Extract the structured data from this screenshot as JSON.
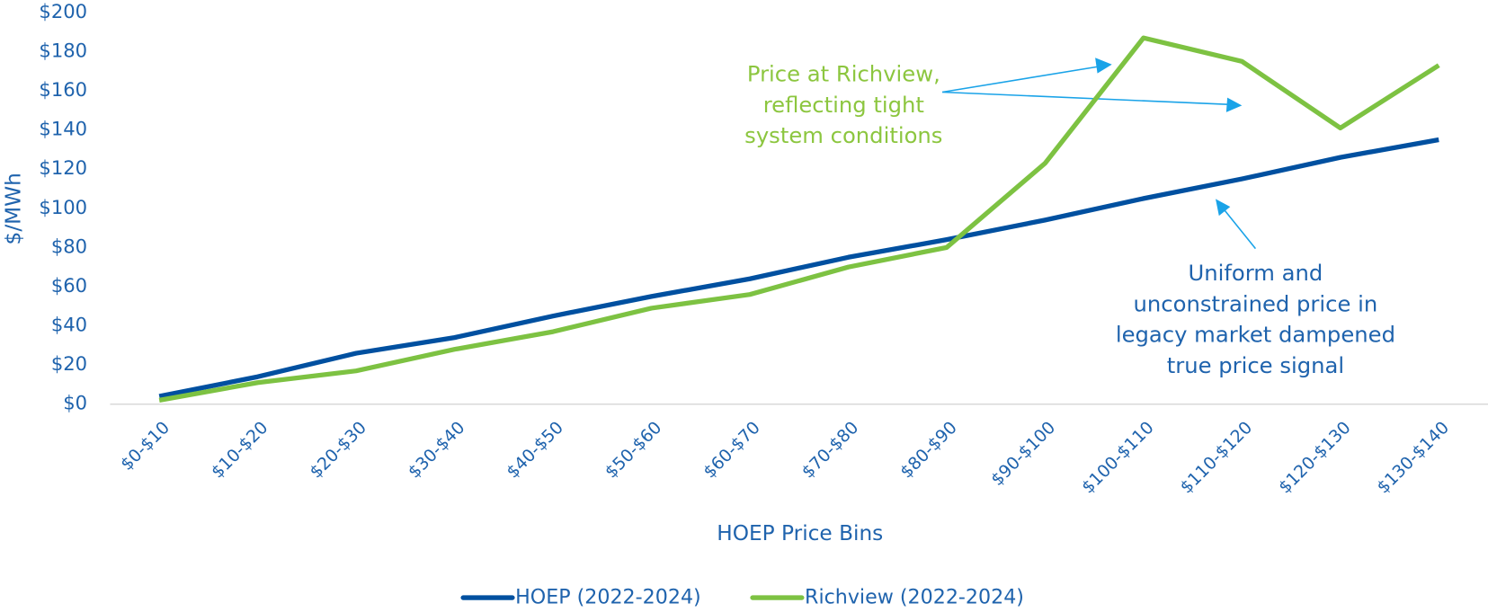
{
  "chart_data": {
    "type": "line",
    "x_label": "HOEP Price Bins",
    "y_label": "$/MWh",
    "categories": [
      "$0-$10",
      "$10-$20",
      "$20-$30",
      "$30-$40",
      "$40-$50",
      "$50-$60",
      "$60-$70",
      "$70-$80",
      "$80-$90",
      "$90-$100",
      "$100-$110",
      "$110-$120",
      "$120-$130",
      "$130-$140"
    ],
    "series": [
      {
        "name": "HOEP (2022-2024)",
        "color": "#0050a0",
        "values": [
          4,
          14,
          26,
          34,
          45,
          55,
          64,
          75,
          84,
          94,
          105,
          115,
          126,
          135
        ]
      },
      {
        "name": "Richview (2022-2024)",
        "color": "#7dc242",
        "values": [
          2,
          11,
          17,
          28,
          37,
          49,
          56,
          70,
          80,
          123,
          187,
          175,
          141,
          173
        ]
      }
    ],
    "ylim": [
      0,
      200
    ],
    "yticks": [
      {
        "value": 0,
        "label": "$0"
      },
      {
        "value": 20,
        "label": "$20"
      },
      {
        "value": 40,
        "label": "$40"
      },
      {
        "value": 60,
        "label": "$60"
      },
      {
        "value": 80,
        "label": "$80"
      },
      {
        "value": 100,
        "label": "$100"
      },
      {
        "value": 120,
        "label": "$120"
      },
      {
        "value": 140,
        "label": "$140"
      },
      {
        "value": 160,
        "label": "$160"
      },
      {
        "value": 180,
        "label": "$180"
      },
      {
        "value": 200,
        "label": "$200"
      }
    ],
    "legend": "bottom",
    "annotations": [
      {
        "lines": [
          "Price at Richview,",
          "reflecting tight",
          "system conditions"
        ],
        "color": "#8cc63f"
      },
      {
        "lines": [
          "Uniform and",
          "unconstrained price in",
          "legacy market dampened",
          "true price signal"
        ],
        "color": "#1f63ad"
      }
    ]
  }
}
